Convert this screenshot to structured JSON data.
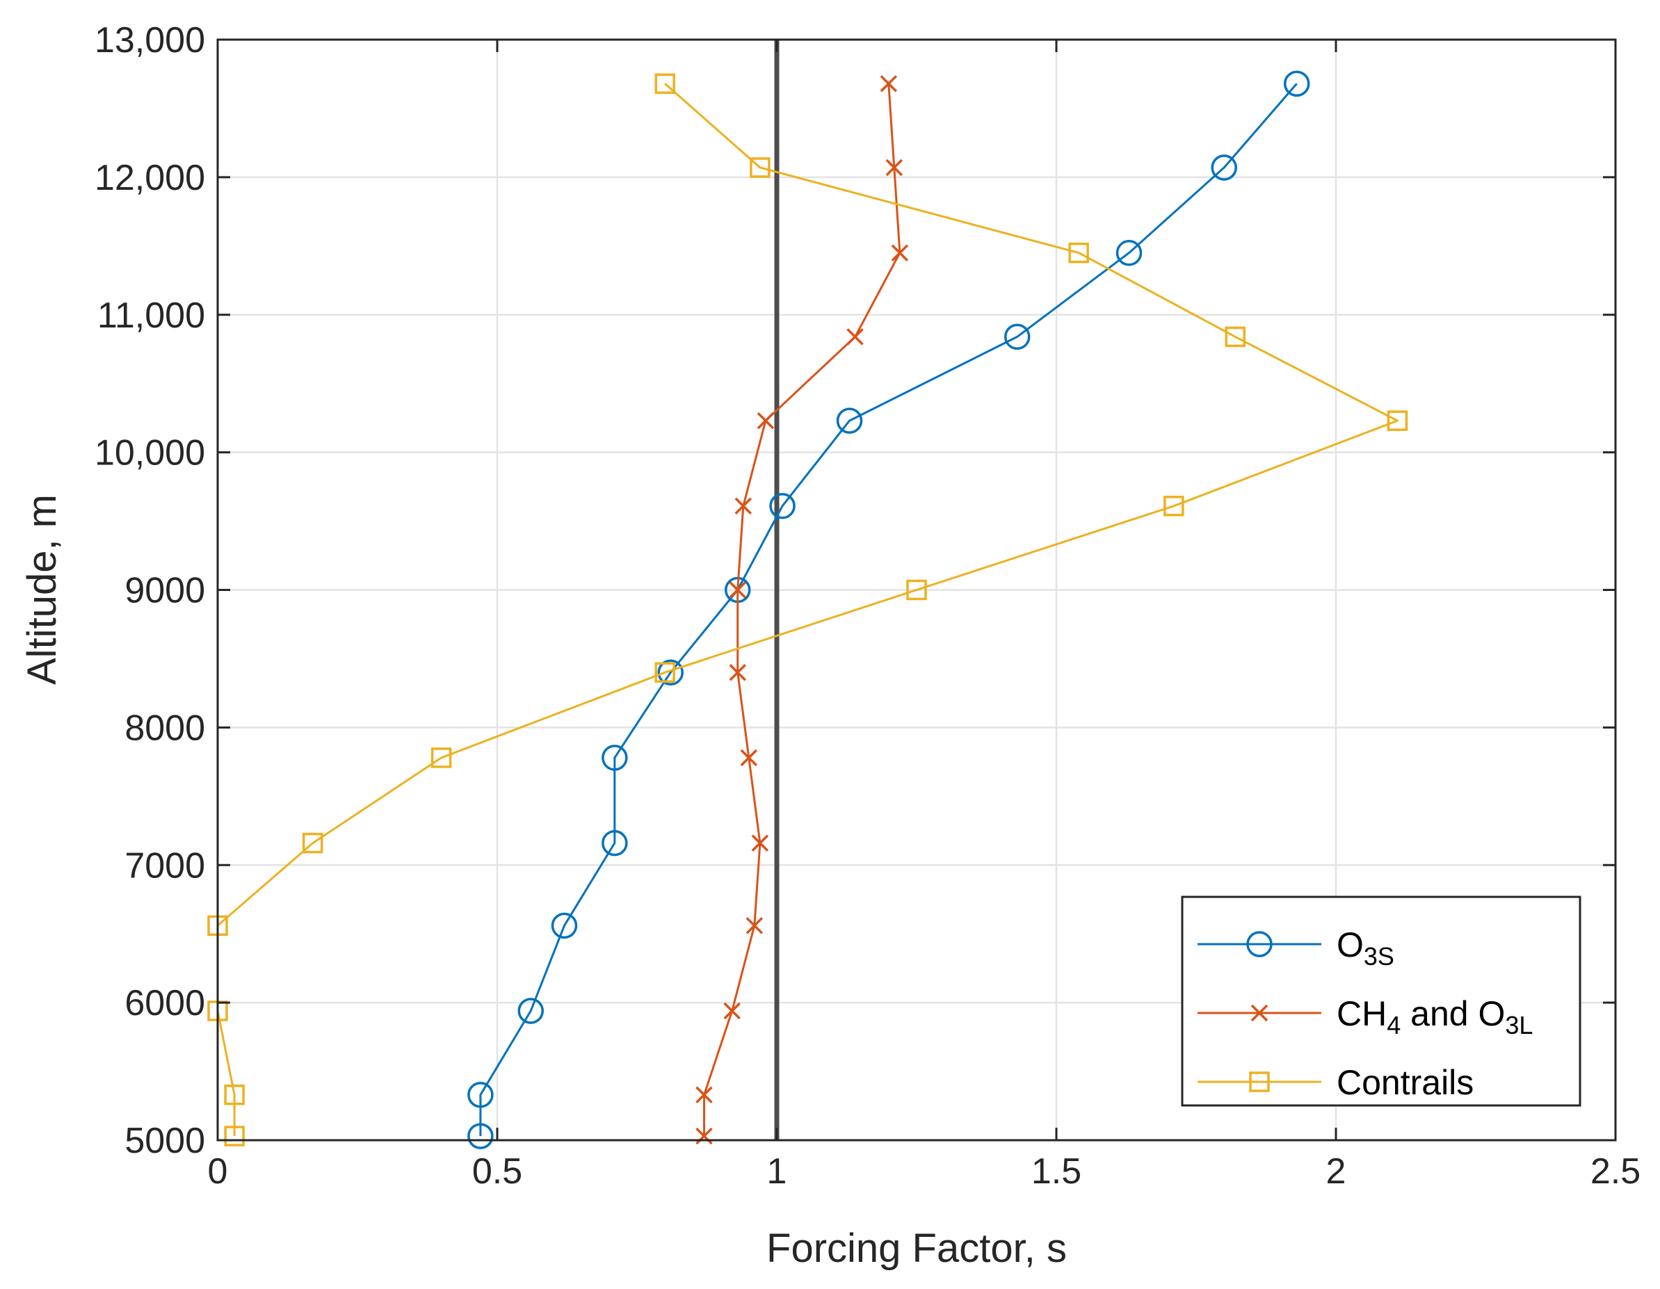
{
  "chart_data": {
    "type": "line",
    "title": "",
    "xlabel": "Forcing Factor, s",
    "ylabel": "Altitude, m",
    "xlim": [
      0,
      2.5
    ],
    "ylim": [
      5000,
      13000
    ],
    "grid": true,
    "x_ticks": [
      0,
      0.5,
      1,
      1.5,
      2,
      2.5
    ],
    "x_tick_labels": [
      "0",
      "0.5",
      "1",
      "1.5",
      "2",
      "2.5"
    ],
    "y_ticks": [
      5000,
      6000,
      7000,
      8000,
      9000,
      10000,
      11000,
      12000,
      13000
    ],
    "y_tick_labels": [
      "5000",
      "6000",
      "7000",
      "8000",
      "9000",
      "10,000",
      "11,000",
      "12,000",
      "13,000"
    ],
    "reference_line": {
      "x": 1,
      "color": "#4d4d4d"
    },
    "legend_position": "bottom-right",
    "series": [
      {
        "name": "O3S",
        "legend_main": "O",
        "legend_sub": "3S",
        "legend_after": "",
        "legend_sub2": "",
        "color": "#0072BD",
        "marker": "circle",
        "x": [
          0.47,
          0.47,
          0.56,
          0.62,
          0.71,
          0.71,
          0.81,
          0.93,
          1.01,
          1.13,
          1.43,
          1.63,
          1.8,
          1.93
        ],
        "y": [
          5030,
          5330,
          5940,
          6560,
          7160,
          7780,
          8400,
          9000,
          9610,
          10230,
          10840,
          11450,
          12070,
          12680
        ]
      },
      {
        "name": "CH4 and O3L",
        "legend_main": "CH",
        "legend_sub": "4",
        "legend_after": " and O",
        "legend_sub2": "3L",
        "color": "#D95319",
        "marker": "x",
        "x": [
          0.87,
          0.87,
          0.92,
          0.96,
          0.97,
          0.95,
          0.93,
          0.93,
          0.94,
          0.98,
          1.14,
          1.22,
          1.21,
          1.2
        ],
        "y": [
          5030,
          5330,
          5940,
          6560,
          7160,
          7780,
          8400,
          9000,
          9610,
          10230,
          10840,
          11450,
          12070,
          12680
        ]
      },
      {
        "name": "Contrails",
        "legend_main": "Contrails",
        "legend_sub": "",
        "legend_after": "",
        "legend_sub2": "",
        "color": "#EDB120",
        "marker": "square",
        "x": [
          0.03,
          0.03,
          0.0,
          0.0,
          0.17,
          0.4,
          0.8,
          1.25,
          1.71,
          2.11,
          1.82,
          1.54,
          0.97,
          0.8
        ],
        "y": [
          5030,
          5330,
          5940,
          6560,
          7160,
          7780,
          8400,
          9000,
          9610,
          10230,
          10840,
          11450,
          12070,
          12680
        ]
      }
    ]
  }
}
